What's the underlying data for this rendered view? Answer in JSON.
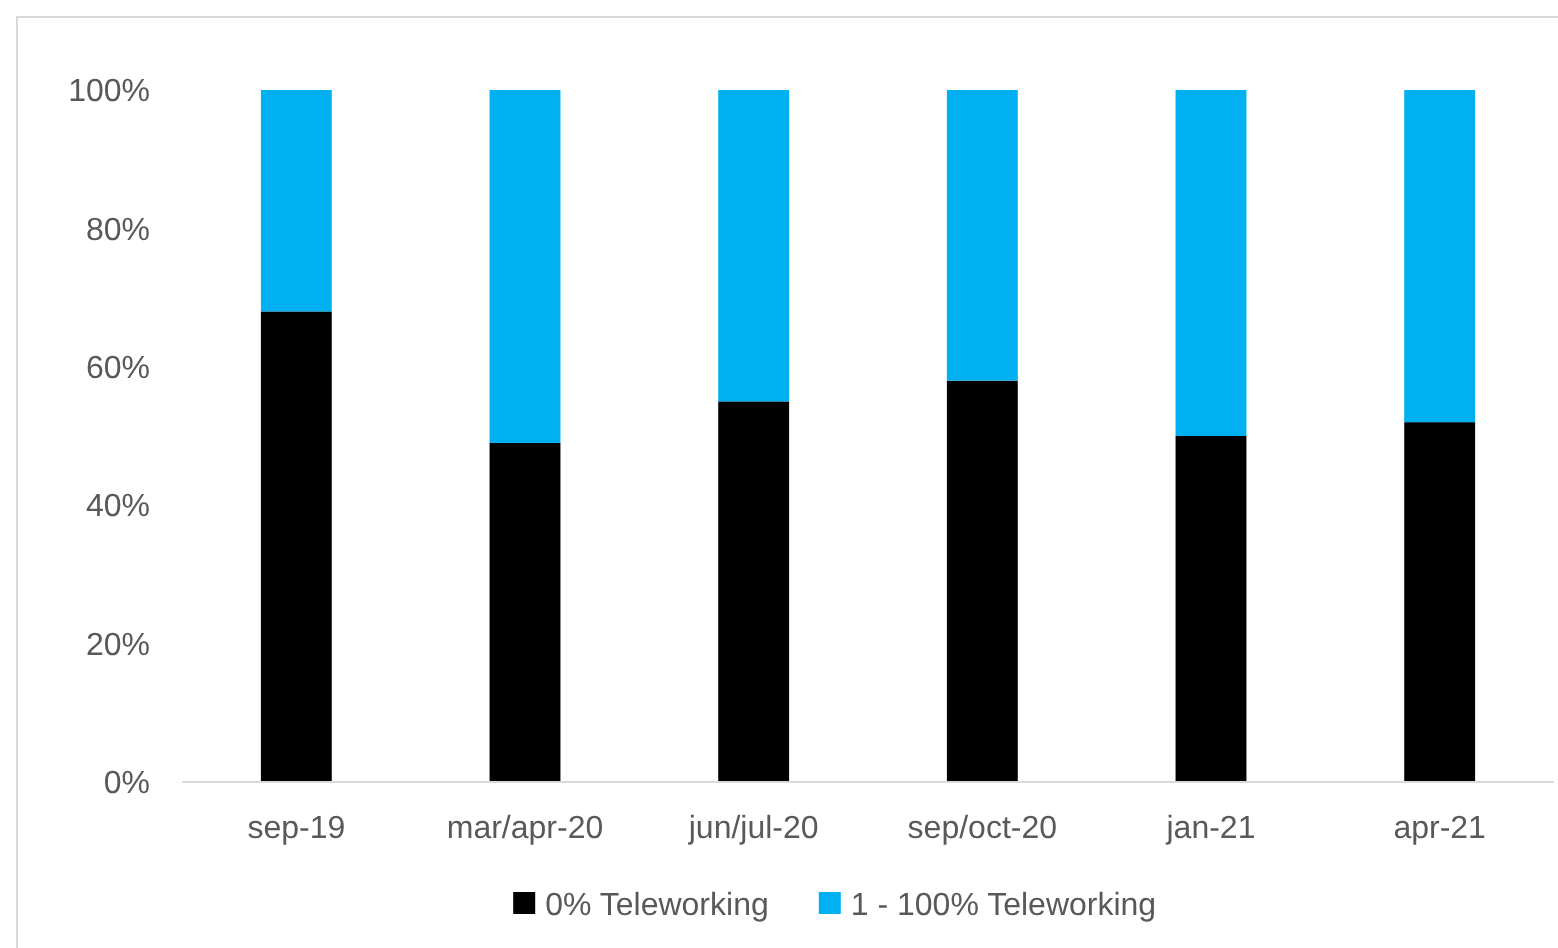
{
  "chart_data": {
    "type": "bar",
    "stacked": true,
    "categories": [
      "sep-19",
      "mar/apr-20",
      "jun/jul-20",
      "sep/oct-20",
      "jan-21",
      "apr-21"
    ],
    "series": [
      {
        "name": "0% Teleworking",
        "color": "#000000",
        "values": [
          68,
          49,
          55,
          58,
          50,
          52
        ]
      },
      {
        "name": "1 - 100% Teleworking",
        "color": "#00b0f0",
        "values": [
          32,
          51,
          45,
          42,
          50,
          48
        ]
      }
    ],
    "ylim": [
      0,
      100
    ],
    "yticks": [
      {
        "value": 0,
        "label": "0%"
      },
      {
        "value": 20,
        "label": "20%"
      },
      {
        "value": 40,
        "label": "40%"
      },
      {
        "value": 60,
        "label": "60%"
      },
      {
        "value": 80,
        "label": "80%"
      },
      {
        "value": 100,
        "label": "100%"
      }
    ],
    "grid": false,
    "legend": "bottom"
  }
}
